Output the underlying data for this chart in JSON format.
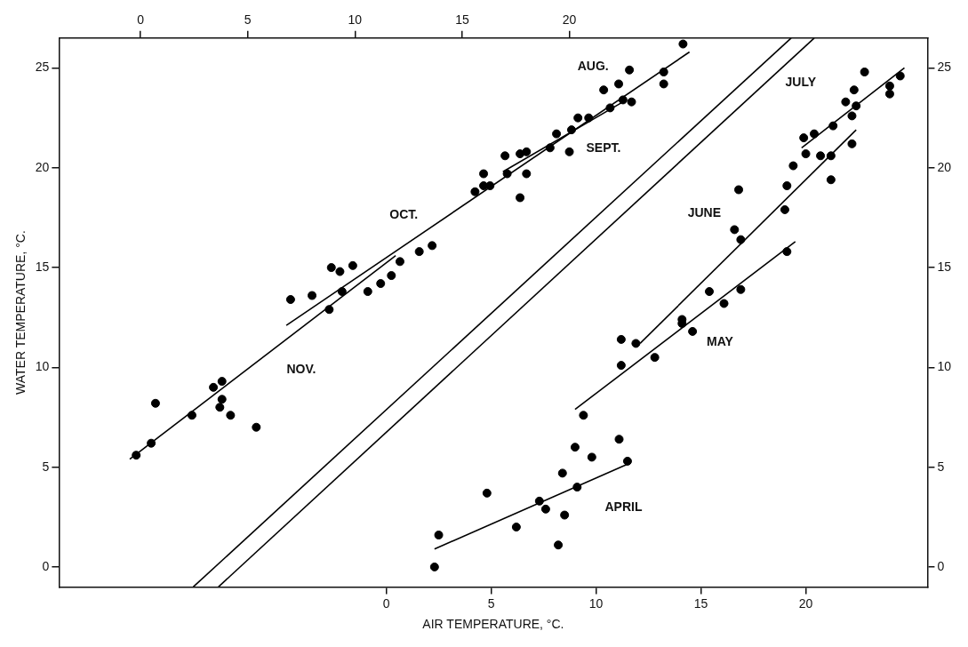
{
  "chart_data": {
    "type": "scatter",
    "xlabel": "AIR TEMPERATURE, °C.",
    "ylabel": "WATER TEMPERATURE, °C.",
    "xlim": [
      -15.6,
      25.8
    ],
    "xticks": [
      0,
      5,
      10,
      15,
      20
    ],
    "x2lim": [
      -3.8,
      36.7
    ],
    "x2ticks": [
      0,
      5,
      10,
      15,
      20
    ],
    "ylim": [
      -1,
      26.5
    ],
    "yticks": [
      0,
      5,
      10,
      15,
      20,
      25
    ],
    "y2lim": [
      -1,
      26.5
    ],
    "y2ticks": [
      0,
      5,
      10,
      15,
      20,
      25
    ],
    "grid": false,
    "legend": false,
    "series": [
      {
        "marker": "circle",
        "axis": "x2",
        "color": "#000000",
        "x": [
          -0.2,
          0.5,
          0.7,
          2.4,
          3.4,
          3.8,
          3.8,
          3.7,
          4.2,
          5.4,
          8.8,
          7.0,
          8.0,
          8.9,
          9.3,
          9.9,
          9.4,
          10.6,
          11.2,
          11.7,
          12.1,
          13.0,
          13.6,
          15.6,
          16.0,
          16.0,
          16.3,
          17.0,
          17.1,
          17.7,
          17.7,
          18.0,
          18.0,
          19.1,
          19.4,
          20.1,
          20.0,
          20.4,
          20.9,
          21.6,
          21.9,
          22.3,
          22.5,
          22.9,
          22.8,
          24.4,
          24.4,
          25.3
        ],
        "values": [
          5.6,
          6.2,
          8.2,
          7.6,
          9.0,
          9.3,
          8.4,
          8.0,
          7.6,
          7.0,
          12.9,
          13.4,
          13.6,
          15.0,
          14.8,
          15.1,
          13.8,
          13.8,
          14.2,
          14.6,
          15.3,
          15.8,
          16.1,
          18.8,
          19.7,
          19.1,
          19.1,
          20.6,
          19.7,
          18.5,
          20.7,
          20.8,
          19.7,
          21.0,
          21.7,
          21.9,
          20.8,
          22.5,
          22.5,
          23.9,
          23.0,
          24.2,
          23.4,
          23.3,
          24.9,
          24.8,
          24.2,
          26.2
        ]
      },
      {
        "marker": "circle",
        "color": "#000000",
        "x": [
          2.3,
          2.5,
          4.8,
          6.2,
          7.3,
          7.6,
          8.2,
          8.5,
          8.4,
          9.1,
          9.0,
          9.8,
          11.1,
          11.5,
          9.4,
          11.2,
          11.2,
          11.9,
          12.8,
          14.1,
          14.1,
          14.6,
          15.4,
          16.1,
          16.9,
          19.1,
          16.8,
          16.6,
          16.9,
          19.1,
          19.0,
          19.4,
          20.0,
          19.9,
          20.4,
          20.7,
          21.2,
          21.2,
          21.3,
          21.9,
          22.3,
          22.4,
          22.2,
          22.2,
          22.8,
          24.0,
          24.0,
          24.5
        ],
        "values": [
          0.0,
          1.6,
          3.7,
          2.0,
          3.3,
          2.9,
          1.1,
          2.6,
          4.7,
          4.0,
          6.0,
          5.5,
          6.4,
          5.3,
          7.6,
          10.1,
          11.4,
          11.2,
          10.5,
          12.4,
          12.2,
          11.8,
          13.8,
          13.2,
          13.9,
          15.8,
          18.9,
          16.9,
          16.4,
          19.1,
          17.9,
          20.1,
          20.7,
          21.5,
          21.7,
          20.6,
          20.6,
          19.4,
          22.1,
          23.3,
          23.9,
          23.1,
          22.6,
          21.2,
          24.8,
          24.1,
          23.7,
          24.6
        ]
      },
      {
        "type": "line",
        "axis": "x2",
        "color": "#000000",
        "x": [
          -0.5,
          11.9
        ],
        "values": [
          5.4,
          15.6
        ]
      },
      {
        "type": "line",
        "axis": "x2",
        "color": "#000000",
        "x": [
          6.8,
          25.6
        ],
        "values": [
          12.1,
          25.8
        ]
      },
      {
        "type": "line",
        "axis": "x2",
        "color": "#000000",
        "x": [
          16.9,
          22.5
        ],
        "values": [
          19.8,
          23.3
        ]
      },
      {
        "type": "line",
        "color": "#000000",
        "x": [
          2.3,
          11.6
        ],
        "values": [
          0.9,
          5.2
        ]
      },
      {
        "type": "line",
        "color": "#000000",
        "x": [
          9.0,
          19.5
        ],
        "values": [
          7.9,
          16.3
        ]
      },
      {
        "type": "line",
        "color": "#000000",
        "x": [
          12.1,
          22.4
        ],
        "values": [
          11.2,
          21.9
        ]
      },
      {
        "type": "line",
        "color": "#000000",
        "x": [
          19.8,
          24.7
        ],
        "values": [
          21.0,
          25.0
        ]
      },
      {
        "type": "line",
        "color": "#000000",
        "x": [
          -9.2,
          19.3
        ],
        "values": [
          -1,
          26.5
        ]
      },
      {
        "type": "line",
        "color": "#000000",
        "x": [
          -8.0,
          20.4
        ],
        "values": [
          -1,
          26.5
        ]
      }
    ],
    "annotations": [
      "AUG.",
      "SEPT.",
      "OCT.",
      "NOV.",
      "JULY",
      "JUNE",
      "MAY",
      "APRIL"
    ]
  }
}
